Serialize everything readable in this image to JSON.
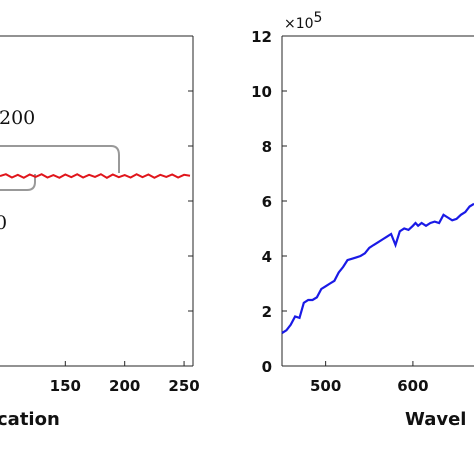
{
  "chart_data": [
    {
      "type": "line",
      "title": "",
      "xlabel": "cation",
      "ylabel": "",
      "xlim": [
        95,
        258
      ],
      "x_ticks": [
        150,
        200,
        250
      ],
      "x_tick_labels": [
        "150",
        "200",
        "250"
      ],
      "grid": false,
      "annotations": [
        "200",
        "0"
      ],
      "series": [
        {
          "color": "#e0151b",
          "x": [
            95,
            100,
            105,
            110,
            115,
            120,
            125,
            130,
            135,
            140,
            145,
            150,
            155,
            160,
            165,
            170,
            175,
            180,
            185,
            190,
            195,
            200,
            205,
            210,
            215,
            220,
            225,
            230,
            235,
            240,
            245,
            250,
            255
          ],
          "y": [
            0.0,
            0.6,
            -0.5,
            0.4,
            -0.6,
            0.5,
            -0.3,
            0.6,
            -0.5,
            0.3,
            -0.6,
            0.5,
            -0.4,
            0.6,
            -0.5,
            0.4,
            -0.3,
            0.6,
            -0.6,
            0.5,
            -0.4,
            0.3,
            -0.5,
            0.6,
            -0.4,
            0.5,
            -0.6,
            0.4,
            -0.3,
            0.5,
            -0.5,
            0.4,
            0.1
          ]
        }
      ]
    },
    {
      "type": "line",
      "title": "",
      "xlabel": "Wavel",
      "ylabel": "",
      "ylim": [
        0,
        12
      ],
      "y_ticks": [
        0,
        2,
        4,
        6,
        8,
        10,
        12
      ],
      "y_tick_labels": [
        "0",
        "2",
        "4",
        "6",
        "8",
        "10",
        "12"
      ],
      "x_ticks": [
        500,
        600
      ],
      "x_tick_labels": [
        "500",
        "600"
      ],
      "xlim": [
        450,
        670
      ],
      "y_multiplier_base": "×10",
      "y_multiplier_exp": "5",
      "grid": false,
      "series": [
        {
          "color": "#1a1ae6",
          "x": [
            450,
            455,
            460,
            465,
            470,
            475,
            480,
            485,
            490,
            495,
            500,
            505,
            510,
            515,
            520,
            525,
            530,
            535,
            540,
            545,
            550,
            555,
            560,
            565,
            570,
            575,
            580,
            585,
            590,
            595,
            600,
            603,
            606,
            610,
            615,
            620,
            625,
            630,
            635,
            640,
            645,
            650,
            655,
            660,
            665,
            670
          ],
          "y": [
            1.2,
            1.3,
            1.5,
            1.8,
            1.75,
            2.3,
            2.4,
            2.4,
            2.5,
            2.8,
            2.9,
            3.0,
            3.1,
            3.4,
            3.6,
            3.85,
            3.9,
            3.95,
            4.0,
            4.1,
            4.3,
            4.4,
            4.5,
            4.6,
            4.7,
            4.8,
            4.4,
            4.9,
            5.0,
            4.95,
            5.1,
            5.2,
            5.1,
            5.2,
            5.1,
            5.2,
            5.25,
            5.2,
            5.5,
            5.4,
            5.3,
            5.35,
            5.5,
            5.6,
            5.8,
            5.9
          ]
        }
      ]
    }
  ]
}
